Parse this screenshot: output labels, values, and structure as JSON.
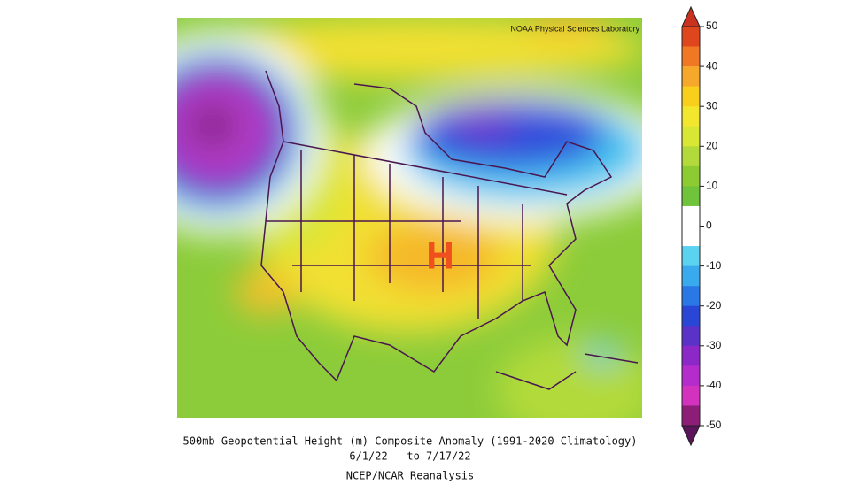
{
  "map": {
    "credit": "NOAA Physical Sciences Laboratory",
    "high_label": "H",
    "caption": [
      "500mb Geopotential Height (m) Composite Anomaly (1991-2020 Climatology)",
      "6/1/22   to 7/17/22",
      "NCEP/NCAR Reanalysis"
    ]
  },
  "colorbar": {
    "lim": [
      -50,
      50
    ],
    "ticks": [
      50,
      40,
      30,
      20,
      10,
      0,
      -10,
      -20,
      -30,
      -40,
      -50
    ],
    "over_color": "#c8321e",
    "under_color": "#5a145a",
    "band_colors": [
      "#e0461e",
      "#f07824",
      "#f5a82a",
      "#f8d01c",
      "#f2e62e",
      "#d8e634",
      "#b2da3a",
      "#8ccc32",
      "#70c43c",
      "#ffffff",
      "#ffffff",
      "#5ad2f0",
      "#3aaaee",
      "#2a78e6",
      "#2a46d6",
      "#5a32c8",
      "#8c28c8",
      "#b42ccc",
      "#d232be",
      "#8c1e78"
    ]
  }
}
